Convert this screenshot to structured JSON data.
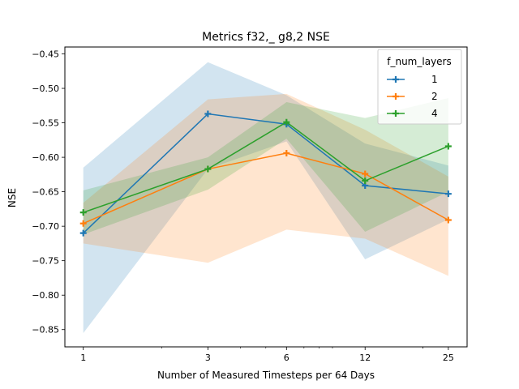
{
  "chart_data": {
    "type": "line",
    "title": "Metrics f32,_ g8,2 NSE",
    "xlabel": "Number of Measured Timesteps per 64 Days",
    "ylabel": "NSE",
    "x_scale": "log",
    "x": [
      1,
      3,
      6,
      12,
      25
    ],
    "x_tick_labels": [
      "1",
      "3",
      "6",
      "12",
      "25"
    ],
    "xlim": [
      0.85,
      29.5
    ],
    "ylim": [
      -0.875,
      -0.44
    ],
    "y_ticks": [
      -0.85,
      -0.8,
      -0.75,
      -0.7,
      -0.65,
      -0.6,
      -0.55,
      -0.5,
      -0.45
    ],
    "y_tick_labels": [
      "−0.85",
      "−0.80",
      "−0.75",
      "−0.70",
      "−0.65",
      "−0.60",
      "−0.55",
      "−0.50",
      "−0.45"
    ],
    "legend_title": "f_num_layers",
    "legend_position": "top-right",
    "grid": false,
    "series": [
      {
        "name": "1",
        "color": "#1f77b4",
        "values": [
          -0.71,
          -0.537,
          -0.552,
          -0.641,
          -0.653
        ],
        "band_low": [
          -0.855,
          -0.617,
          -0.577,
          -0.748,
          -0.69
        ],
        "band_high": [
          -0.615,
          -0.462,
          -0.51,
          -0.58,
          -0.612
        ]
      },
      {
        "name": "2",
        "color": "#ff7f0e",
        "values": [
          -0.696,
          -0.617,
          -0.594,
          -0.624,
          -0.691
        ],
        "band_low": [
          -0.725,
          -0.753,
          -0.705,
          -0.718,
          -0.772
        ],
        "band_high": [
          -0.666,
          -0.516,
          -0.508,
          -0.56,
          -0.628
        ]
      },
      {
        "name": "4",
        "color": "#2ca02c",
        "values": [
          -0.68,
          -0.617,
          -0.549,
          -0.634,
          -0.584
        ],
        "band_low": [
          -0.712,
          -0.647,
          -0.573,
          -0.708,
          -0.65
        ],
        "band_high": [
          -0.648,
          -0.6,
          -0.52,
          -0.543,
          -0.514
        ]
      }
    ]
  }
}
